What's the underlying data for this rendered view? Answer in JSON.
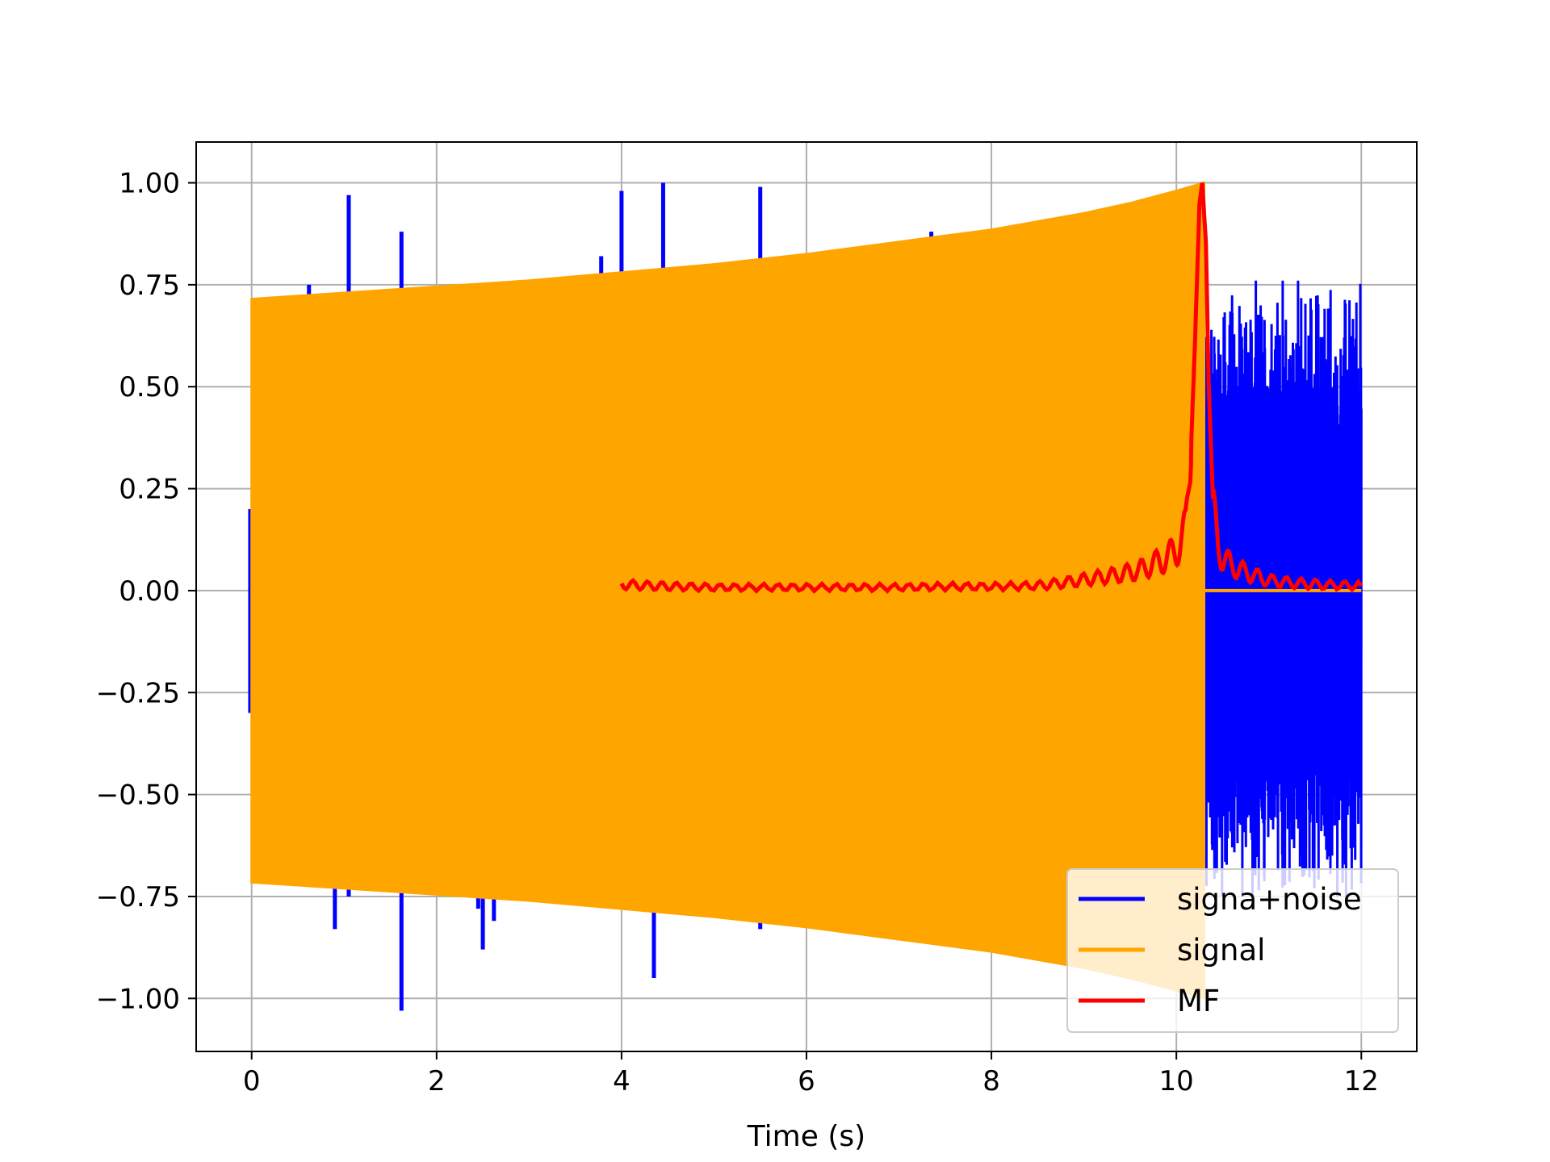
{
  "chart_data": {
    "type": "line",
    "title": "",
    "xlabel": "Time (s)",
    "ylabel": "",
    "xlim": [
      -0.6,
      12.6
    ],
    "ylim": [
      -1.13,
      1.1
    ],
    "grid": true,
    "legend_placement": "lower-right",
    "xticks": [
      0,
      2,
      4,
      6,
      8,
      10,
      12
    ],
    "yticks": [
      -1.0,
      -0.75,
      -0.5,
      -0.25,
      0.0,
      0.25,
      0.5,
      0.75,
      1.0
    ],
    "xtick_labels": [
      "0",
      "2",
      "4",
      "6",
      "8",
      "10",
      "12"
    ],
    "ytick_labels": [
      "−1.00",
      "−0.75",
      "−0.50",
      "−0.25",
      "0.00",
      "0.25",
      "0.50",
      "0.75",
      "1.00"
    ],
    "series": [
      {
        "name": "signa+noise",
        "color": "#0000ff",
        "description_values": {
          "spike_times": [
            0.62,
            1.05,
            1.62,
            3.78,
            4.0,
            4.45,
            5.5,
            7.35,
            0.9,
            1.05,
            1.62,
            2.45,
            2.5,
            2.62,
            4.35,
            5.5
          ],
          "spike_values": [
            0.75,
            0.97,
            0.88,
            0.82,
            0.98,
            1.0,
            0.99,
            0.88,
            -0.83,
            -0.75,
            -1.03,
            -0.78,
            -0.88,
            -0.81,
            -0.95,
            -0.83
          ],
          "noise_range_x": [
            10.3,
            12.0
          ],
          "noise_envelope": [
            -0.72,
            0.76
          ]
        }
      },
      {
        "name": "signal",
        "color": "#ffa500",
        "description_values": {
          "envelope_x": [
            0,
            1,
            2,
            3,
            4,
            5,
            6,
            7,
            8,
            9,
            9.5,
            10,
            10.3
          ],
          "envelope_upper": [
            0.715,
            0.73,
            0.745,
            0.76,
            0.78,
            0.8,
            0.825,
            0.855,
            0.885,
            0.925,
            0.95,
            0.98,
            1.0
          ],
          "envelope_lower": [
            -0.715,
            -0.73,
            -0.745,
            -0.76,
            -0.78,
            -0.8,
            -0.825,
            -0.855,
            -0.885,
            -0.925,
            -0.95,
            -0.98,
            -1.0
          ],
          "end_x": 10.3,
          "after_end_value": 0.0,
          "after_end_range": [
            10.3,
            12.0
          ]
        }
      },
      {
        "name": "MF",
        "color": "#ff0000",
        "x": [
          4.0,
          4.3,
          4.6,
          5.0,
          5.5,
          6.0,
          6.5,
          7.0,
          7.5,
          8.0,
          8.5,
          8.8,
          9.1,
          9.4,
          9.6,
          9.8,
          9.9,
          10.0,
          10.1,
          10.15,
          10.2,
          10.25,
          10.28,
          10.32,
          10.35,
          10.4,
          10.45,
          10.5,
          10.6,
          10.8,
          11.0,
          11.3,
          11.6,
          12.0
        ],
        "values": [
          0.015,
          0.012,
          0.01,
          0.008,
          0.008,
          0.008,
          0.008,
          0.008,
          0.01,
          0.01,
          0.012,
          0.02,
          0.03,
          0.04,
          0.05,
          0.07,
          0.08,
          0.1,
          0.15,
          0.3,
          0.6,
          0.95,
          1.0,
          0.85,
          0.5,
          0.2,
          0.12,
          0.08,
          0.06,
          0.04,
          0.025,
          0.018,
          0.014,
          0.012
        ]
      }
    ]
  }
}
